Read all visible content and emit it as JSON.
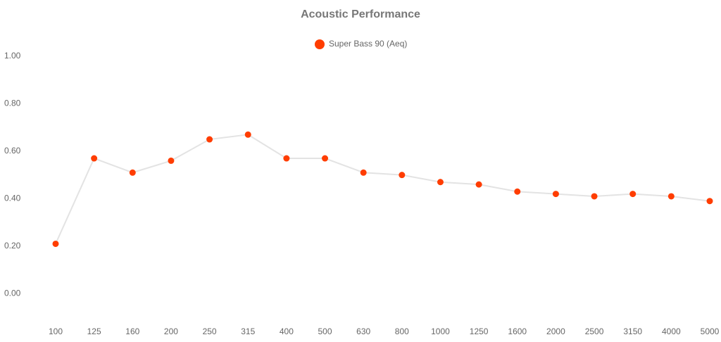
{
  "chart_data": {
    "type": "line",
    "title": "Acoustic Performance",
    "categories": [
      "100",
      "125",
      "160",
      "200",
      "250",
      "315",
      "400",
      "500",
      "630",
      "800",
      "1000",
      "1250",
      "1600",
      "2000",
      "2500",
      "3150",
      "4000",
      "5000"
    ],
    "series": [
      {
        "name": "Super Bass 90 (Aeq)",
        "color": "#ff3d00",
        "line_color": "#e3e3e3",
        "values": [
          0.21,
          0.57,
          0.51,
          0.56,
          0.65,
          0.67,
          0.57,
          0.57,
          0.51,
          0.5,
          0.47,
          0.46,
          0.43,
          0.42,
          0.41,
          0.42,
          0.41,
          0.39
        ]
      }
    ],
    "ylim": [
      -0.1,
      1.0
    ],
    "yticks": [
      {
        "value": 0,
        "label": "0.00"
      },
      {
        "value": 0.2,
        "label": "0.20"
      },
      {
        "value": 0.4,
        "label": "0.40"
      },
      {
        "value": 0.6,
        "label": "0.60"
      },
      {
        "value": 0.8,
        "label": "0.80"
      },
      {
        "value": 1.0,
        "label": "1.00"
      }
    ],
    "grid": false,
    "legend": "top"
  }
}
